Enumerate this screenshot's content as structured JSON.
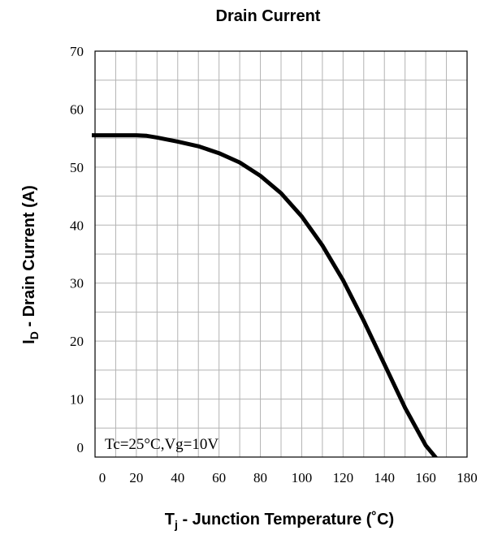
{
  "chart_data": {
    "type": "line",
    "title": "Drain Current",
    "xlabel": {
      "main": "T",
      "sub": "j",
      "rest": " - Junction Temperature (˚C)"
    },
    "ylabel": {
      "main": "I",
      "sub": "D",
      "rest": " - Drain Current (A)"
    },
    "xlim": [
      0,
      180
    ],
    "ylim": [
      0,
      70
    ],
    "xticks": [
      0,
      20,
      40,
      60,
      80,
      100,
      120,
      140,
      160,
      180
    ],
    "yticks": [
      0,
      10,
      20,
      30,
      40,
      50,
      60,
      70
    ],
    "grid": true,
    "annotation": "Tc=25°C,Vg=10V",
    "series": [
      {
        "x": [
          -5,
          0,
          10,
          20,
          25,
          30,
          40,
          50,
          60,
          70,
          80,
          90,
          100,
          110,
          120,
          130,
          140,
          150,
          160,
          167
        ],
        "y": [
          55.5,
          55.5,
          55.5,
          55.5,
          55.4,
          55.1,
          54.4,
          53.6,
          52.4,
          50.8,
          48.5,
          45.5,
          41.5,
          36.5,
          30.5,
          23.5,
          16.0,
          8.5,
          2.0,
          -1
        ]
      }
    ],
    "line_color": "#000000",
    "grid_color": "#b3b3b3"
  }
}
